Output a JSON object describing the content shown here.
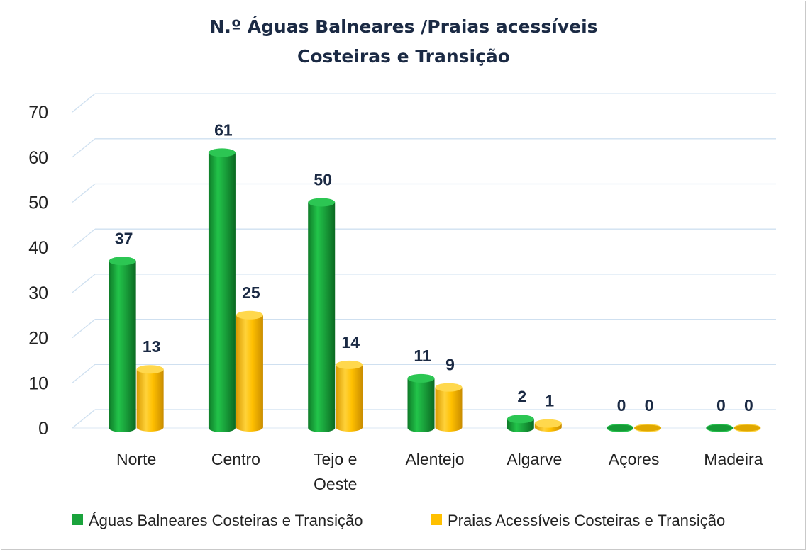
{
  "chart_data": {
    "type": "bar",
    "title_lines": [
      "N.º Águas Balneares /Praias acessíveis",
      "Costeiras e Transição"
    ],
    "categories": [
      [
        "Norte"
      ],
      [
        "Centro"
      ],
      [
        "Tejo e",
        "Oeste"
      ],
      [
        "Alentejo"
      ],
      [
        "Algarve"
      ],
      [
        "Açores"
      ],
      [
        "Madeira"
      ]
    ],
    "series": [
      {
        "name": "Águas Balneares Costeiras e Transição",
        "color": "#1aa33c",
        "values": [
          37,
          61,
          50,
          11,
          2,
          0,
          0
        ]
      },
      {
        "name": "Praias Acessíveis Costeiras e Transição",
        "color": "#ffc000",
        "values": [
          13,
          25,
          14,
          9,
          1,
          0,
          0
        ]
      }
    ],
    "yticks": [
      0,
      10,
      20,
      30,
      40,
      50,
      60,
      70
    ],
    "ylim": [
      0,
      70
    ],
    "grid": true,
    "legend_position": "bottom",
    "style": "3d-cylinder"
  }
}
